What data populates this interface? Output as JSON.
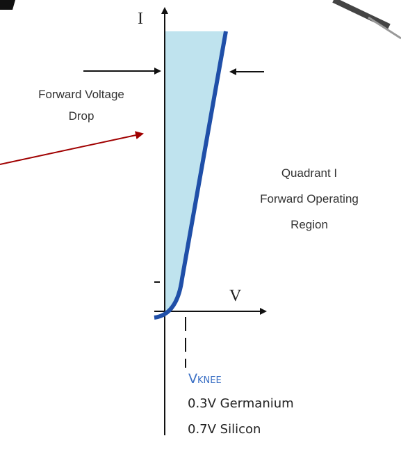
{
  "axes": {
    "y_label": "I",
    "x_label": "V"
  },
  "annotations": {
    "forward_voltage_drop": [
      "Forward Voltage",
      "Drop"
    ],
    "quadrant": [
      "Quadrant I",
      "Forward Operating",
      "Region"
    ],
    "knee": {
      "symbol": "V",
      "subscript": "KNEE"
    },
    "materials": [
      "0.3V Germanium",
      "0.7V Silicon"
    ]
  }
}
